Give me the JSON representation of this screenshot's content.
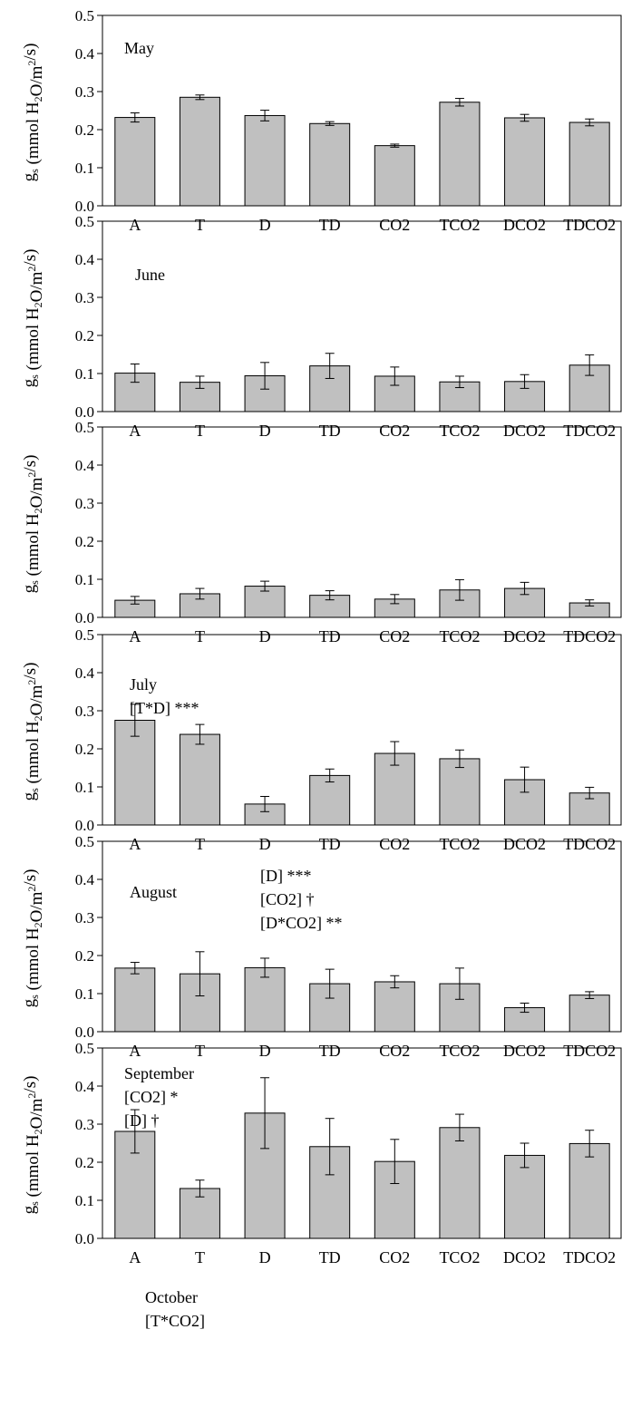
{
  "chart_data": [
    {
      "type": "bar",
      "annotations": [
        "May"
      ],
      "categories": [
        "A",
        "T",
        "D",
        "TD",
        "CO2",
        "TCO2",
        "DCO2",
        "TDCO2"
      ],
      "values": [
        0.232,
        0.285,
        0.237,
        0.216,
        0.158,
        0.272,
        0.231,
        0.219
      ],
      "errors": [
        0.012,
        0.006,
        0.014,
        0.005,
        0.004,
        0.01,
        0.009,
        0.009
      ],
      "ylabel": "gs (mmol H2O/m2/s)",
      "ylim": [
        0,
        0.5
      ],
      "yticks": [
        "0.0",
        "0.1",
        "0.2",
        "0.3",
        "0.4",
        "0.5"
      ]
    },
    {
      "type": "bar",
      "annotations": [
        "June"
      ],
      "categories": [
        "A",
        "T",
        "D",
        "TD",
        "CO2",
        "TCO2",
        "DCO2",
        "TDCO2"
      ],
      "values": [
        0.101,
        0.077,
        0.094,
        0.12,
        0.093,
        0.078,
        0.079,
        0.122
      ],
      "errors": [
        0.024,
        0.016,
        0.035,
        0.033,
        0.024,
        0.015,
        0.018,
        0.027
      ],
      "ylabel": "gs (mmol H2O/m2/s)",
      "ylim": [
        0,
        0.5
      ],
      "yticks": [
        "0.0",
        "0.1",
        "0.2",
        "0.3",
        "0.4",
        "0.5"
      ]
    },
    {
      "type": "bar",
      "annotations": [
        "July",
        "[T*D] ***"
      ],
      "categories": [
        "A",
        "T",
        "D",
        "TD",
        "CO2",
        "TCO2",
        "DCO2",
        "TDCO2"
      ],
      "values": [
        0.045,
        0.062,
        0.082,
        0.058,
        0.048,
        0.072,
        0.076,
        0.038
      ],
      "errors": [
        0.01,
        0.014,
        0.013,
        0.012,
        0.012,
        0.027,
        0.016,
        0.008
      ],
      "ylabel": "gs (mmol H2O/m2/s)",
      "ylim": [
        0,
        0.5
      ],
      "yticks": [
        "0.0",
        "0.1",
        "0.2",
        "0.3",
        "0.4",
        "0.5"
      ]
    },
    {
      "type": "bar",
      "annotations": [
        "August",
        "[D] ***",
        "[CO2] †",
        "[D*CO2] **"
      ],
      "categories": [
        "A",
        "T",
        "D",
        "TD",
        "CO2",
        "TCO2",
        "DCO2",
        "TDCO2"
      ],
      "values": [
        0.275,
        0.238,
        0.055,
        0.13,
        0.188,
        0.174,
        0.119,
        0.084
      ],
      "errors": [
        0.042,
        0.026,
        0.02,
        0.017,
        0.031,
        0.023,
        0.033,
        0.015
      ],
      "ylabel": "gs (mmol H2O/m2/s)",
      "ylim": [
        0,
        0.5
      ],
      "yticks": [
        "0.0",
        "0.1",
        "0.2",
        "0.3",
        "0.4",
        "0.5"
      ]
    },
    {
      "type": "bar",
      "annotations": [
        "September",
        "[CO2] *",
        "[D] †"
      ],
      "categories": [
        "A",
        "T",
        "D",
        "TD",
        "CO2",
        "TCO2",
        "DCO2",
        "TDCO2"
      ],
      "values": [
        0.167,
        0.152,
        0.168,
        0.126,
        0.131,
        0.126,
        0.063,
        0.096
      ],
      "errors": [
        0.015,
        0.058,
        0.025,
        0.038,
        0.016,
        0.041,
        0.012,
        0.009
      ],
      "ylabel": "gs (mmol H2O/m2/s)",
      "ylim": [
        0,
        0.5
      ],
      "yticks": [
        "0.0",
        "0.1",
        "0.2",
        "0.3",
        "0.4",
        "0.5"
      ]
    },
    {
      "type": "bar",
      "annotations": [
        "October",
        "[T*CO2]"
      ],
      "categories": [
        "A",
        "T",
        "D",
        "TD",
        "CO2",
        "TCO2",
        "DCO2",
        "TDCO2"
      ],
      "values": [
        0.281,
        0.131,
        0.329,
        0.241,
        0.202,
        0.291,
        0.218,
        0.249
      ],
      "errors": [
        0.057,
        0.022,
        0.093,
        0.074,
        0.058,
        0.035,
        0.032,
        0.035
      ],
      "ylabel": "gs (mmol H2O/m2/s)",
      "ylim": [
        0,
        0.5
      ],
      "yticks": [
        "0.0",
        "0.1",
        "0.2",
        "0.3",
        "0.4",
        "0.5"
      ]
    }
  ],
  "colors": {
    "bar_fill": "#c0c0c0",
    "bar_stroke": "#000000",
    "axis": "#000000"
  }
}
